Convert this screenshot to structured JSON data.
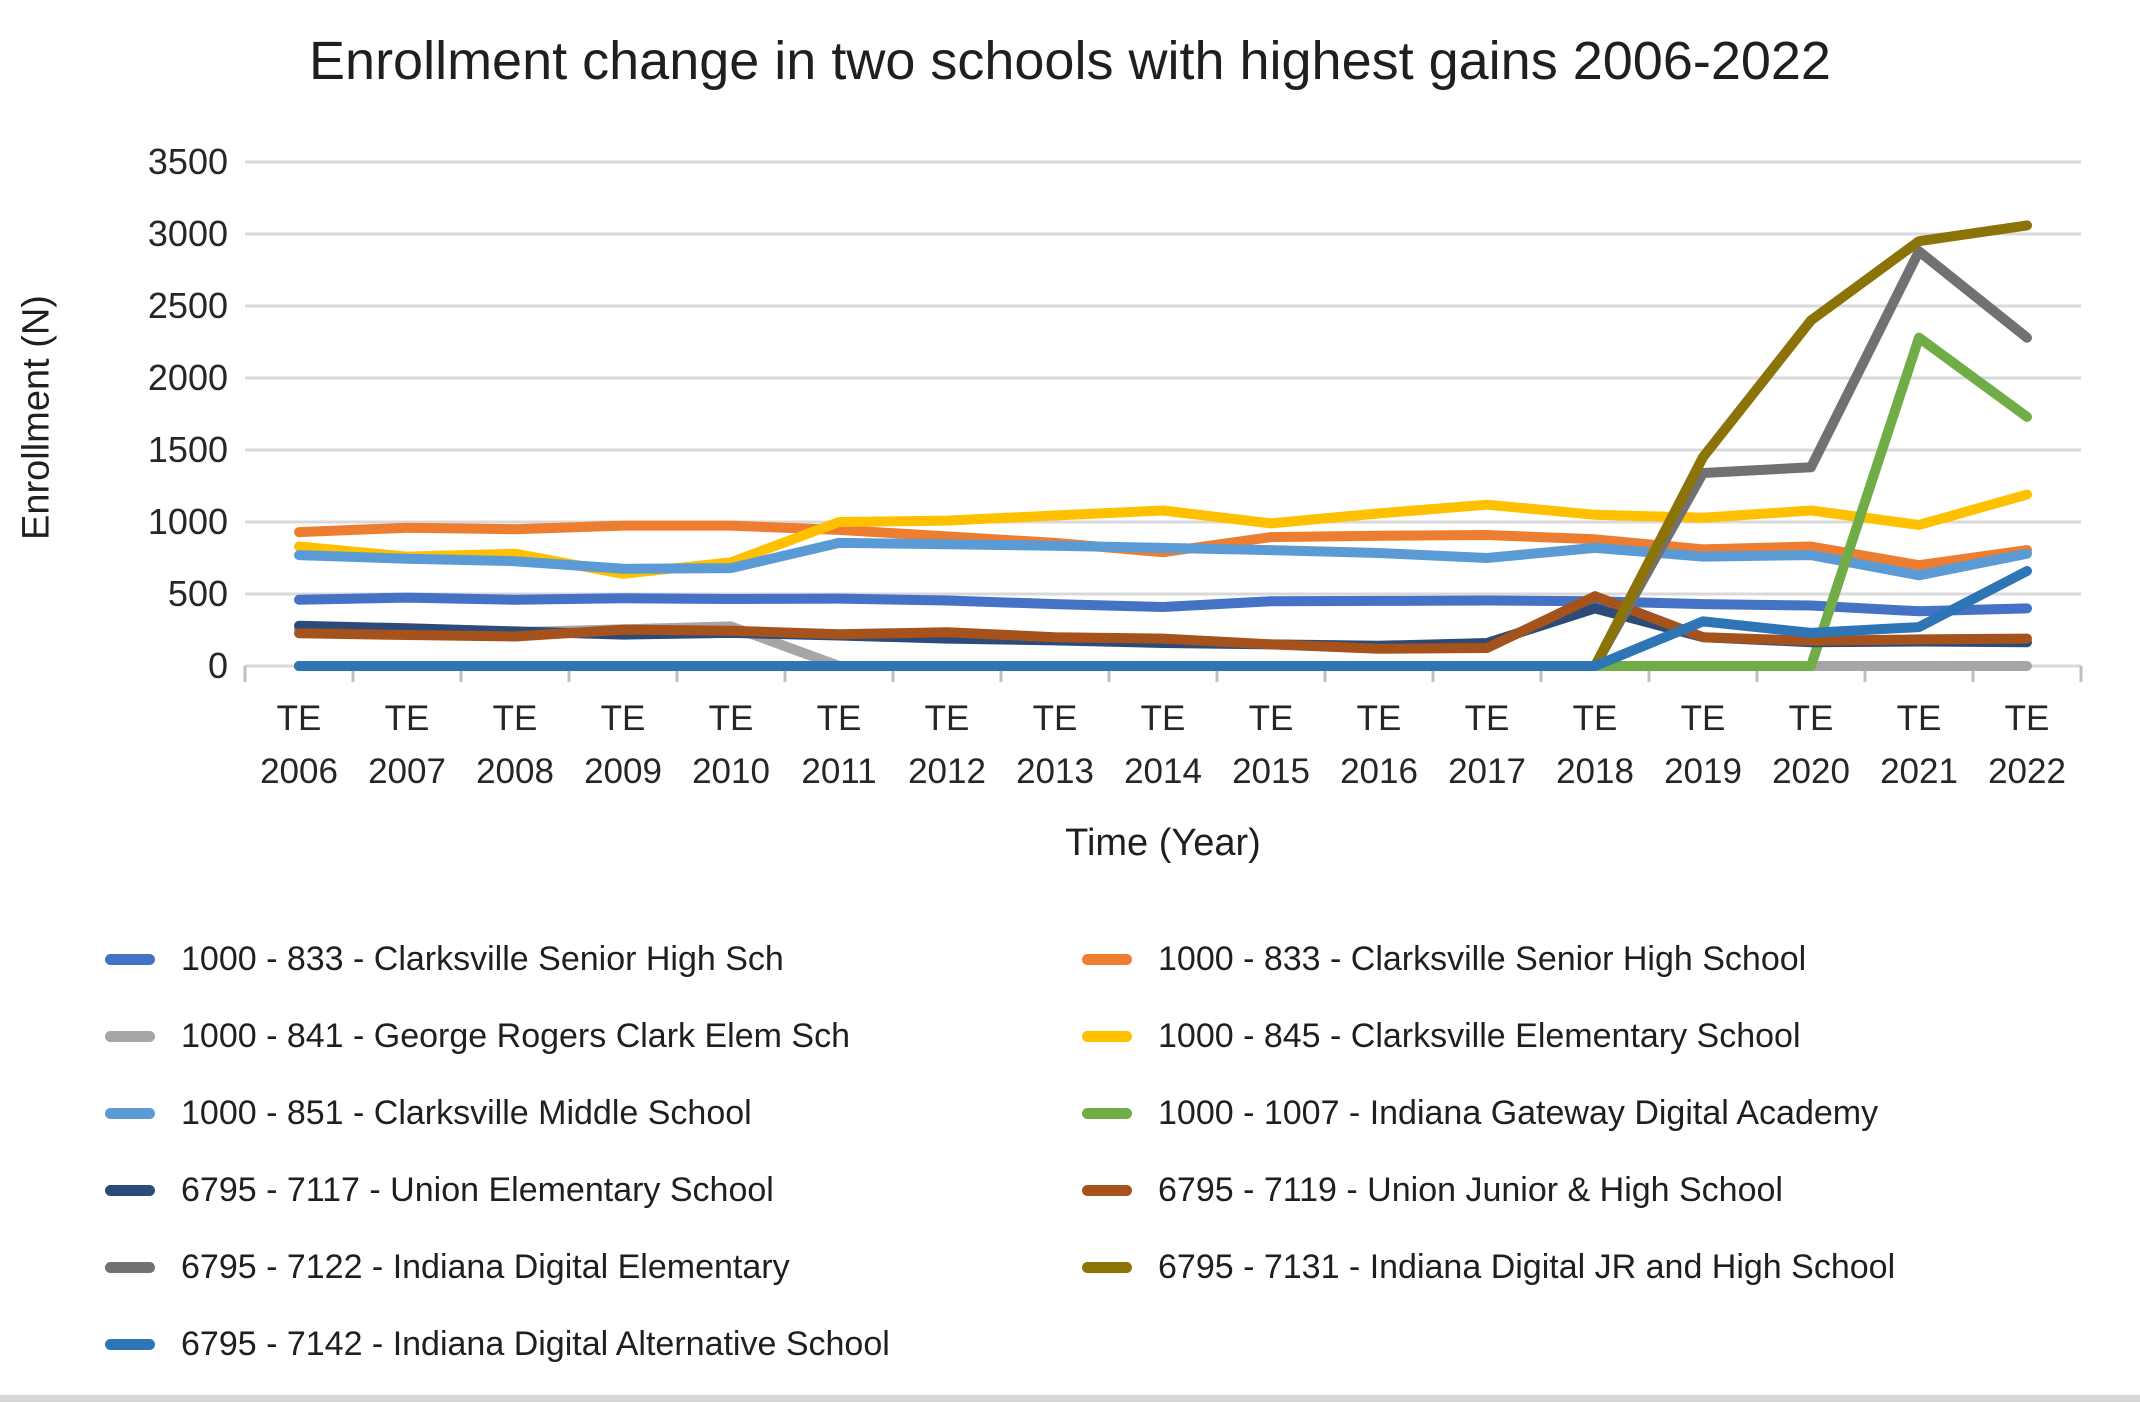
{
  "chart_data": {
    "type": "line",
    "title": "Enrollment change in two schools with highest gains 2006-2022",
    "xlabel": "Time (Year)",
    "ylabel": "Enrollment (N)",
    "x_tick_prefix": "TE",
    "categories": [
      "2006",
      "2007",
      "2008",
      "2009",
      "2010",
      "2011",
      "2012",
      "2013",
      "2014",
      "2015",
      "2016",
      "2017",
      "2018",
      "2019",
      "2020",
      "2021",
      "2022"
    ],
    "ylim": [
      0,
      3500
    ],
    "y_step": 500,
    "grid": true,
    "legend_position": "bottom-two-columns",
    "grid_color": "#d9d9d9",
    "axis_tick_color": "#bfbfbf",
    "series": [
      {
        "name": "1000 - 833 - Clarksville Senior High Sch",
        "color": "#4472C4",
        "values": [
          460,
          475,
          460,
          470,
          465,
          468,
          455,
          430,
          410,
          450,
          452,
          455,
          450,
          430,
          420,
          380,
          400
        ]
      },
      {
        "name": "1000 - 833 - Clarksville Senior High School",
        "color": "#ED7D31",
        "values": [
          930,
          960,
          950,
          975,
          975,
          945,
          900,
          855,
          790,
          895,
          905,
          910,
          880,
          810,
          830,
          700,
          805
        ]
      },
      {
        "name": "1000 - 841 - George Rogers Clark Elem Sch",
        "color": "#A6A6A6",
        "values": [
          255,
          245,
          235,
          255,
          275,
          0,
          0,
          0,
          0,
          0,
          0,
          0,
          0,
          0,
          0,
          0,
          0
        ]
      },
      {
        "name": "1000 - 845 - Clarksville Elementary School",
        "color": "#FFC000",
        "values": [
          830,
          760,
          780,
          640,
          720,
          1000,
          1010,
          1045,
          1080,
          990,
          1060,
          1120,
          1050,
          1030,
          1080,
          980,
          1190
        ]
      },
      {
        "name": "1000 - 851 - Clarksville Middle School",
        "color": "#5B9BD5",
        "values": [
          770,
          745,
          728,
          675,
          680,
          855,
          845,
          835,
          820,
          805,
          785,
          750,
          820,
          760,
          770,
          630,
          780
        ]
      },
      {
        "name": "1000 - 1007 - Indiana Gateway Digital Academy",
        "color": "#70AD47",
        "values": [
          0,
          0,
          0,
          0,
          0,
          0,
          0,
          0,
          0,
          0,
          0,
          0,
          0,
          0,
          0,
          2280,
          1730
        ]
      },
      {
        "name": "6795 - 7117 - Union Elementary School",
        "color": "#2D4B78",
        "values": [
          280,
          262,
          240,
          218,
          230,
          212,
          190,
          178,
          160,
          150,
          140,
          160,
          400,
          200,
          165,
          170,
          165
        ]
      },
      {
        "name": "6795 - 7119 - Union Junior & High School",
        "color": "#A6521C",
        "values": [
          228,
          215,
          205,
          252,
          245,
          220,
          235,
          200,
          190,
          150,
          120,
          125,
          485,
          200,
          175,
          185,
          190
        ]
      },
      {
        "name": "6795 - 7122 - Indiana Digital Elementary",
        "color": "#717171",
        "values": [
          0,
          0,
          0,
          0,
          0,
          0,
          0,
          0,
          0,
          0,
          0,
          0,
          0,
          1340,
          1380,
          2880,
          2280
        ]
      },
      {
        "name": "6795 - 7131 - Indiana Digital JR and High School",
        "color": "#8B7308",
        "values": [
          0,
          0,
          0,
          0,
          0,
          0,
          0,
          0,
          0,
          0,
          0,
          0,
          0,
          1450,
          2400,
          2950,
          3060
        ]
      },
      {
        "name": "6795 - 7142 - Indiana Digital Alternative School",
        "color": "#2E75B6",
        "values": [
          0,
          0,
          0,
          0,
          0,
          0,
          0,
          0,
          0,
          0,
          0,
          0,
          0,
          310,
          230,
          270,
          660
        ]
      }
    ]
  }
}
